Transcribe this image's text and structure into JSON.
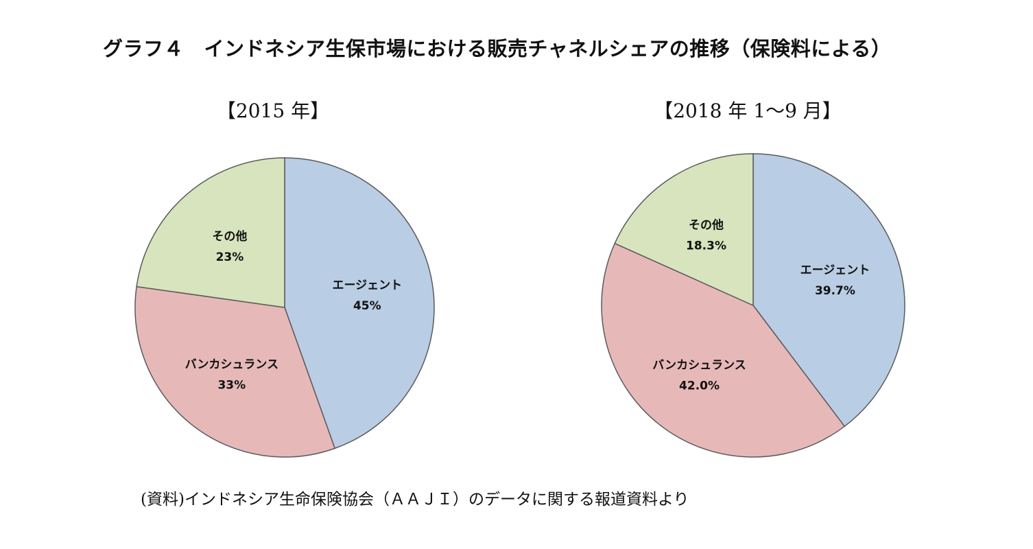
{
  "title": "グラフ４　インドネシア生保市場における販売チャネルシェアの推移（保険料による）",
  "source": "(資料)インドネシア生命保険協会（ＡＡＪＩ）のデータに関する報道資料より",
  "chart_data": [
    {
      "type": "pie",
      "title": "【2015 年】",
      "slices": [
        {
          "label": "エージェント",
          "value": 45,
          "value_text": "45%",
          "color": "#b9cde4"
        },
        {
          "label": "バンカシュランス",
          "value": 33,
          "value_text": "33%",
          "color": "#e6b9b8"
        },
        {
          "label": "その他",
          "value": 23,
          "value_text": "23%",
          "color": "#d7e4bd"
        }
      ]
    },
    {
      "type": "pie",
      "title": "【2018 年 1～9 月】",
      "slices": [
        {
          "label": "エージェント",
          "value": 39.7,
          "value_text": "39.7%",
          "color": "#b9cde4"
        },
        {
          "label": "バンカシュランス",
          "value": 42.0,
          "value_text": "42.0%",
          "color": "#e6b9b8"
        },
        {
          "label": "その他",
          "value": 18.3,
          "value_text": "18.3%",
          "color": "#d7e4bd"
        }
      ]
    }
  ]
}
